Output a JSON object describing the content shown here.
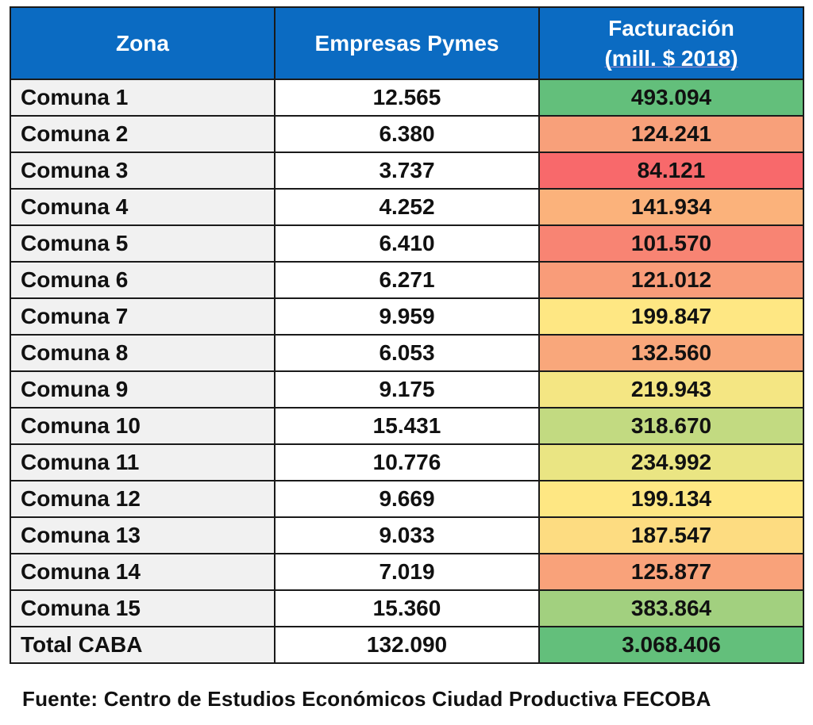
{
  "table": {
    "headers": {
      "zona": "Zona",
      "empresas": "Empresas Pymes",
      "facturacion_line1": "Facturación",
      "facturacion_line2": "(mill. $ 2018)"
    },
    "rows": [
      {
        "zona": "Comuna 1",
        "empresas": "12.565",
        "facturacion": "493.094",
        "color": "#63bf7b"
      },
      {
        "zona": "Comuna 2",
        "empresas": "6.380",
        "facturacion": "124.241",
        "color": "#f8a07a"
      },
      {
        "zona": "Comuna 3",
        "empresas": "3.737",
        "facturacion": "84.121",
        "color": "#f8696b"
      },
      {
        "zona": "Comuna 4",
        "empresas": "4.252",
        "facturacion": "141.934",
        "color": "#fbb27b"
      },
      {
        "zona": "Comuna 5",
        "empresas": "6.410",
        "facturacion": "101.570",
        "color": "#f88473"
      },
      {
        "zona": "Comuna 6",
        "empresas": "6.271",
        "facturacion": "121.012",
        "color": "#f99c79"
      },
      {
        "zona": "Comuna 7",
        "empresas": "9.959",
        "facturacion": "199.847",
        "color": "#fee783"
      },
      {
        "zona": "Comuna 8",
        "empresas": "6.053",
        "facturacion": "132.560",
        "color": "#f9a77b"
      },
      {
        "zona": "Comuna 9",
        "empresas": "9.175",
        "facturacion": "219.943",
        "color": "#f4e683"
      },
      {
        "zona": "Comuna 10",
        "empresas": "15.431",
        "facturacion": "318.670",
        "color": "#c2da81"
      },
      {
        "zona": "Comuna 11",
        "empresas": "10.776",
        "facturacion": "234.992",
        "color": "#eae583"
      },
      {
        "zona": "Comuna 12",
        "empresas": "9.669",
        "facturacion": "199.134",
        "color": "#fee783"
      },
      {
        "zona": "Comuna 13",
        "empresas": "9.033",
        "facturacion": "187.547",
        "color": "#fddc81"
      },
      {
        "zona": "Comuna 14",
        "empresas": "7.019",
        "facturacion": "125.877",
        "color": "#f9a27a"
      },
      {
        "zona": "Comuna 15",
        "empresas": "15.360",
        "facturacion": "383.864",
        "color": "#a2d07f"
      },
      {
        "zona": "Total CABA",
        "empresas": "132.090",
        "facturacion": "3.068.406",
        "color": "#63bf7b"
      }
    ]
  },
  "source": "Fuente: Centro de Estudios Económicos Ciudad Productiva FECOBA"
}
